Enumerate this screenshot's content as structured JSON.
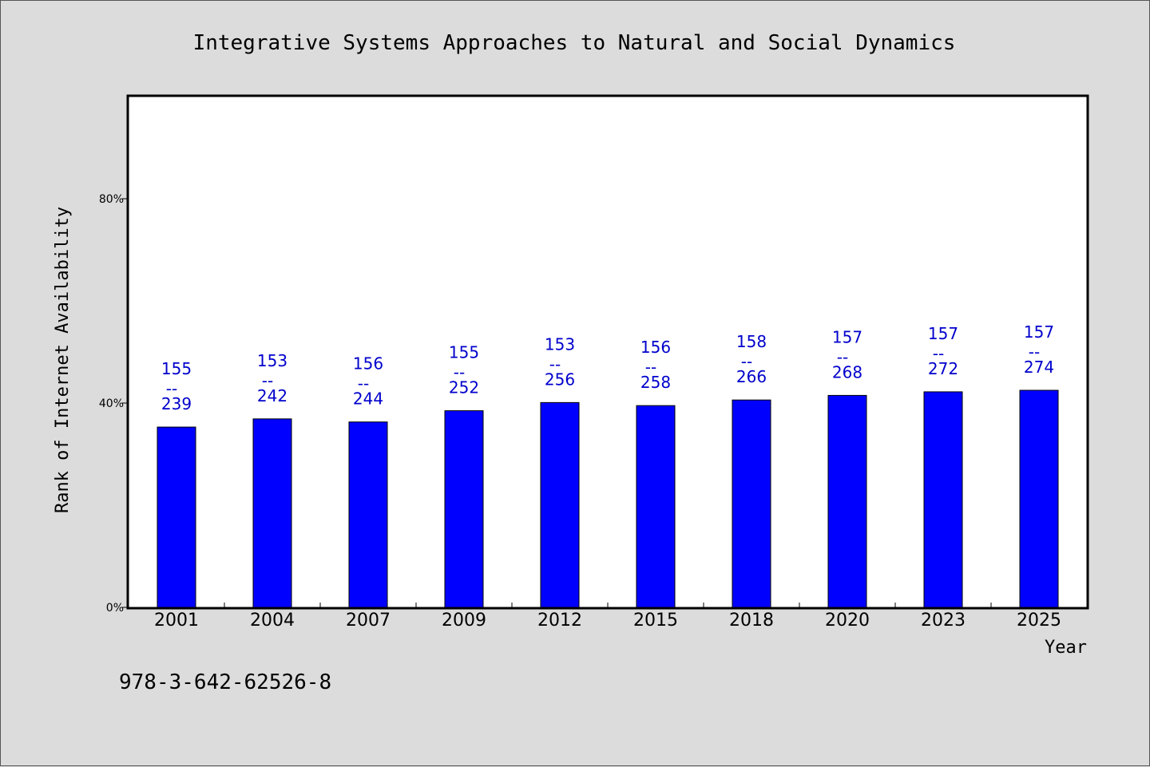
{
  "chart_data": {
    "type": "bar",
    "title": "Integrative Systems Approaches to Natural and Social Dynamics",
    "xlabel": "Year",
    "ylabel": "Rank of Internet Availability",
    "categories": [
      "2001",
      "2004",
      "2007",
      "2009",
      "2012",
      "2015",
      "2018",
      "2020",
      "2023",
      "2025"
    ],
    "values": [
      35.3,
      36.9,
      36.3,
      38.5,
      40.1,
      39.5,
      40.6,
      41.5,
      42.2,
      42.5
    ],
    "data_labels": [
      {
        "top": "155",
        "sep": "--",
        "bottom": "239"
      },
      {
        "top": "153",
        "sep": "--",
        "bottom": "242"
      },
      {
        "top": "156",
        "sep": "--",
        "bottom": "244"
      },
      {
        "top": "155",
        "sep": "--",
        "bottom": "252"
      },
      {
        "top": "153",
        "sep": "--",
        "bottom": "256"
      },
      {
        "top": "156",
        "sep": "--",
        "bottom": "258"
      },
      {
        "top": "158",
        "sep": "--",
        "bottom": "266"
      },
      {
        "top": "157",
        "sep": "--",
        "bottom": "268"
      },
      {
        "top": "157",
        "sep": "--",
        "bottom": "272"
      },
      {
        "top": "157",
        "sep": "--",
        "bottom": "274"
      }
    ],
    "ylim": [
      0,
      100
    ],
    "yticks": [
      0,
      40,
      80
    ],
    "ytick_labels": [
      "0%",
      "40%",
      "80%"
    ],
    "grid": false,
    "colors": {
      "bar": "#0000ff",
      "label": "#0000cc",
      "background": "#dcdcdc",
      "plot_background": "#ffffff"
    }
  },
  "footer_text": "978-3-642-62526-8"
}
